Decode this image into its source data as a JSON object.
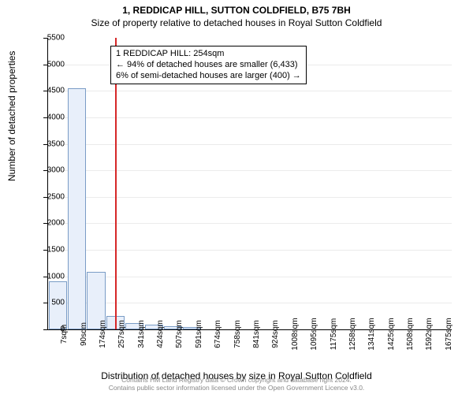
{
  "title": "1, REDDICAP HILL, SUTTON COLDFIELD, B75 7BH",
  "subtitle": "Size of property relative to detached houses in Royal Sutton Coldfield",
  "ylabel": "Number of detached properties",
  "xlabel": "Distribution of detached houses by size in Royal Sutton Coldfield",
  "footer_line1": "Contains HM Land Registry data © Crown copyright and database right 2024.",
  "footer_line2": "Contains public sector information licensed under the Open Government Licence v3.0.",
  "chart": {
    "type": "histogram",
    "ylim": [
      0,
      5500
    ],
    "ytick_step": 500,
    "bar_fill": "#e8effa",
    "bar_stroke": "#7a9cc6",
    "marker_color": "#d62728",
    "grid_color": "#e6e6e6",
    "background_color": "#ffffff",
    "font_family": "Arial",
    "title_fontsize": 12,
    "label_fontsize": 12,
    "tick_fontsize": 10,
    "x_categories": [
      "7sqm",
      "90sqm",
      "174sqm",
      "257sqm",
      "341sqm",
      "424sqm",
      "507sqm",
      "591sqm",
      "674sqm",
      "758sqm",
      "841sqm",
      "924sqm",
      "1008sqm",
      "1095sqm",
      "1175sqm",
      "1258sqm",
      "1341sqm",
      "1425sqm",
      "1508sqm",
      "1592sqm",
      "1675sqm"
    ],
    "values": [
      900,
      4550,
      1080,
      250,
      120,
      90,
      60,
      50,
      0,
      0,
      0,
      0,
      0,
      0,
      0,
      0,
      0,
      0,
      0,
      0,
      0
    ],
    "marker_index": 2.97
  },
  "annotation": {
    "line1": "1 REDDICAP HILL: 254sqm",
    "line2": "← 94% of detached houses are smaller (6,433)",
    "line3": "6% of semi-detached houses are larger (400) →"
  }
}
